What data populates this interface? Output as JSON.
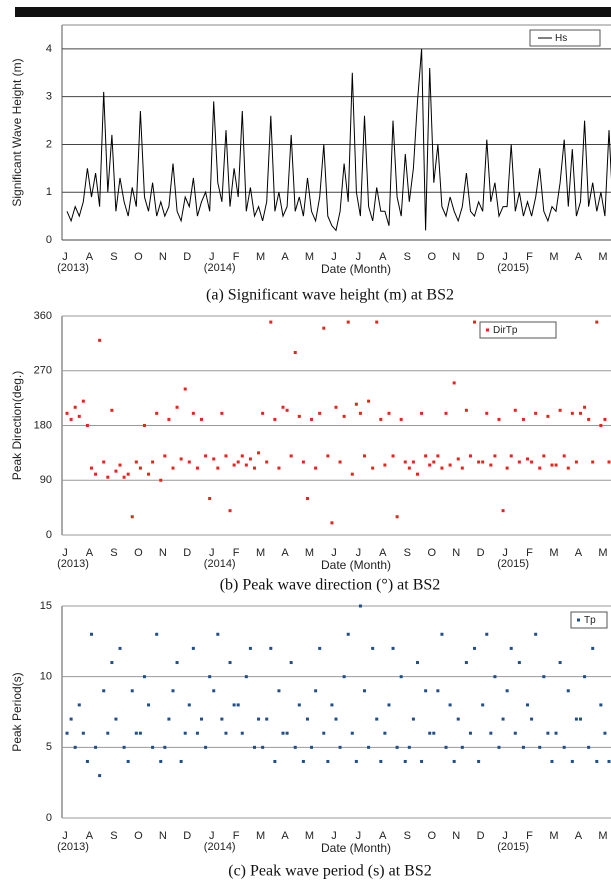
{
  "chart_data": [
    {
      "type": "line",
      "caption": "(a)   Significant wave height (m) at BS2",
      "y_label": "Significant Wave Height (m)",
      "x_label": "Date (Month)",
      "categories": [
        "J",
        "A",
        "S",
        "O",
        "N",
        "D",
        "J",
        "F",
        "M",
        "A",
        "M",
        "J",
        "J",
        "A",
        "S",
        "O",
        "N",
        "D",
        "J",
        "F",
        "M",
        "A",
        "M"
      ],
      "category_sublabels": [
        "(2013)",
        null,
        null,
        null,
        null,
        null,
        "(2014)",
        null,
        null,
        null,
        null,
        null,
        null,
        null,
        null,
        null,
        null,
        null,
        "(2015)",
        null,
        null,
        null,
        null
      ],
      "ylim": [
        0,
        4.5
      ],
      "yticks": [
        0,
        1,
        2,
        3,
        4
      ],
      "grid": true,
      "legend": "top-right",
      "series": [
        {
          "name": "Hs",
          "color": "#000000",
          "values": [
            [
              0.6,
              0.4,
              0.7,
              0.5,
              0.8,
              1.5
            ],
            [
              0.9,
              1.4,
              0.7,
              3.1,
              1.0,
              2.2
            ],
            [
              0.6,
              1.3,
              0.8,
              0.5,
              1.1,
              0.7
            ],
            [
              2.7,
              0.9,
              0.6,
              1.2,
              0.5,
              0.8
            ],
            [
              0.5,
              0.7,
              1.6,
              0.6,
              0.4,
              0.9
            ],
            [
              0.7,
              1.3,
              0.5,
              0.8,
              1.0,
              0.6
            ],
            [
              2.9,
              1.2,
              0.8,
              2.3,
              0.7,
              1.5
            ],
            [
              0.9,
              2.7,
              0.6,
              1.1,
              0.5,
              0.7
            ],
            [
              0.4,
              0.8,
              2.6,
              0.6,
              1.0,
              0.5
            ],
            [
              0.7,
              2.2,
              0.6,
              0.9,
              0.5,
              1.3
            ],
            [
              0.6,
              0.4,
              0.9,
              2.0,
              0.5,
              0.3
            ],
            [
              0.2,
              0.6,
              1.6,
              0.8,
              3.5,
              1.0
            ],
            [
              0.5,
              2.6,
              0.7,
              0.4,
              1.1,
              0.6
            ],
            [
              0.6,
              0.3,
              2.5,
              0.9,
              0.5,
              1.8
            ],
            [
              0.8,
              1.5,
              2.9,
              4.0,
              0.2,
              3.6
            ],
            [
              1.2,
              2.0,
              0.7,
              0.5,
              0.9,
              0.6
            ],
            [
              0.4,
              0.7,
              1.4,
              0.6,
              0.5,
              0.8
            ],
            [
              0.6,
              2.1,
              0.8,
              1.2,
              0.5,
              0.7
            ],
            [
              0.7,
              2.0,
              0.6,
              1.0,
              0.5,
              0.8
            ],
            [
              0.5,
              0.9,
              1.5,
              0.6,
              0.4,
              0.7
            ],
            [
              0.6,
              1.2,
              2.1,
              0.7,
              1.9,
              0.5
            ],
            [
              0.8,
              2.5,
              0.7,
              1.2,
              0.6,
              1.0
            ],
            [
              0.5,
              2.3,
              0.6,
              0.9,
              0.4,
              0.6
            ]
          ]
        }
      ]
    },
    {
      "type": "scatter",
      "caption": "(b)   Peak wave direction (°) at BS2",
      "y_label": "Peak Direction(deg.)",
      "x_label": "Date (Month)",
      "categories": [
        "J",
        "A",
        "S",
        "O",
        "N",
        "D",
        "J",
        "F",
        "M",
        "A",
        "M",
        "J",
        "J",
        "A",
        "S",
        "O",
        "N",
        "D",
        "J",
        "F",
        "M",
        "A",
        "M"
      ],
      "category_sublabels": [
        "(2013)",
        null,
        null,
        null,
        null,
        null,
        "(2014)",
        null,
        null,
        null,
        null,
        null,
        null,
        null,
        null,
        null,
        null,
        null,
        "(2015)",
        null,
        null,
        null,
        null
      ],
      "ylim": [
        0,
        360
      ],
      "yticks": [
        0,
        90,
        180,
        270,
        360
      ],
      "grid": true,
      "legend": "top-right",
      "series": [
        {
          "name": "DirTp",
          "color": "#e8221c",
          "values": [
            [
              200,
              190,
              210,
              195,
              220,
              180
            ],
            [
              110,
              100,
              320,
              120,
              95,
              205
            ],
            [
              105,
              115,
              95,
              100,
              30,
              120
            ],
            [
              110,
              180,
              100,
              120,
              200,
              90
            ],
            [
              130,
              190,
              110,
              210,
              125,
              240
            ],
            [
              120,
              200,
              110,
              190,
              130,
              60
            ],
            [
              125,
              110,
              200,
              130,
              40,
              115
            ],
            [
              120,
              130,
              115,
              125,
              110,
              135
            ],
            [
              200,
              120,
              350,
              190,
              110,
              210
            ],
            [
              205,
              130,
              300,
              195,
              120,
              60
            ],
            [
              190,
              110,
              200,
              340,
              130,
              20
            ],
            [
              210,
              120,
              195,
              350,
              100,
              215
            ],
            [
              200,
              130,
              220,
              110,
              350,
              190
            ],
            [
              115,
              200,
              130,
              30,
              190,
              120
            ],
            [
              110,
              120,
              100,
              200,
              130,
              115
            ],
            [
              120,
              130,
              110,
              200,
              115,
              250
            ],
            [
              125,
              110,
              205,
              130,
              350,
              120
            ],
            [
              120,
              200,
              115,
              130,
              190,
              40
            ],
            [
              110,
              130,
              205,
              120,
              190,
              125
            ],
            [
              120,
              200,
              110,
              130,
              195,
              115
            ],
            [
              115,
              205,
              130,
              110,
              200,
              120
            ],
            [
              200,
              210,
              190,
              120,
              350,
              180
            ],
            [
              190,
              120,
              200,
              40,
              210,
              350
            ]
          ]
        }
      ]
    },
    {
      "type": "scatter",
      "caption": "(c)   Peak wave period (s) at BS2",
      "y_label": "Peak Period(s)",
      "x_label": "Date (Month)",
      "categories": [
        "J",
        "A",
        "S",
        "O",
        "N",
        "D",
        "J",
        "F",
        "M",
        "A",
        "M",
        "J",
        "J",
        "A",
        "S",
        "O",
        "N",
        "D",
        "J",
        "F",
        "M",
        "A",
        "M"
      ],
      "category_sublabels": [
        "(2013)",
        null,
        null,
        null,
        null,
        null,
        "(2014)",
        null,
        null,
        null,
        null,
        null,
        null,
        null,
        null,
        null,
        null,
        null,
        "(2015)",
        null,
        null,
        null,
        null
      ],
      "ylim": [
        0,
        15
      ],
      "yticks": [
        0,
        5,
        10,
        15
      ],
      "grid": true,
      "legend": "top-right",
      "series": [
        {
          "name": "Tp",
          "color": "#1f4e8c",
          "values": [
            [
              6,
              7,
              5,
              8,
              6,
              4
            ],
            [
              13,
              5,
              3,
              9,
              6,
              11
            ],
            [
              7,
              12,
              5,
              4,
              9,
              6
            ],
            [
              6,
              10,
              8,
              5,
              13,
              4
            ],
            [
              5,
              7,
              9,
              11,
              4,
              6
            ],
            [
              8,
              12,
              6,
              7,
              5,
              10
            ],
            [
              9,
              13,
              7,
              6,
              11,
              8
            ],
            [
              8,
              6,
              10,
              12,
              5,
              7
            ],
            [
              5,
              7,
              12,
              4,
              9,
              6
            ],
            [
              6,
              11,
              5,
              8,
              4,
              7
            ],
            [
              5,
              9,
              12,
              6,
              4,
              8
            ],
            [
              7,
              5,
              10,
              13,
              6,
              4
            ],
            [
              15,
              9,
              5,
              12,
              7,
              4
            ],
            [
              6,
              8,
              12,
              5,
              10,
              4
            ],
            [
              5,
              7,
              11,
              4,
              9,
              6
            ],
            [
              6,
              9,
              13,
              5,
              8,
              4
            ],
            [
              7,
              5,
              11,
              6,
              12,
              4
            ],
            [
              8,
              13,
              6,
              10,
              5,
              7
            ],
            [
              9,
              12,
              6,
              11,
              5,
              8
            ],
            [
              7,
              13,
              5,
              10,
              6,
              4
            ],
            [
              6,
              11,
              5,
              9,
              4,
              7
            ],
            [
              7,
              10,
              5,
              12,
              4,
              8
            ],
            [
              6,
              4,
              9,
              5,
              7,
              3
            ]
          ]
        }
      ]
    }
  ]
}
